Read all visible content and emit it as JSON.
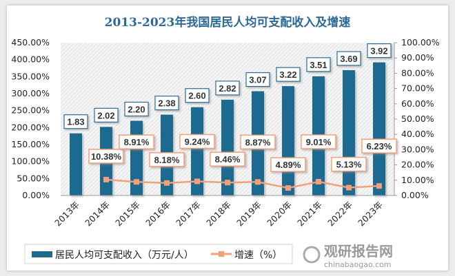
{
  "chart_data": {
    "type": "bar",
    "title": "2013-2023年我国居民人均可支配收入及增速",
    "categories": [
      "2013年",
      "2014年",
      "2015年",
      "2016年",
      "2017年",
      "2018年",
      "2019年",
      "2020年",
      "2021年",
      "2022年",
      "2023年"
    ],
    "series": [
      {
        "name": "居民人均可支配收入（万元/人）",
        "type": "bar",
        "axis": "left",
        "color": "#1f6a8f",
        "values": [
          1.83,
          2.02,
          2.2,
          2.38,
          2.6,
          2.82,
          3.07,
          3.22,
          3.51,
          3.69,
          3.92
        ],
        "labels": [
          "1.83",
          "2.02",
          "2.20",
          "2.38",
          "2.60",
          "2.82",
          "3.07",
          "3.22",
          "3.51",
          "3.69",
          "3.92"
        ]
      },
      {
        "name": "增速（%）",
        "type": "line",
        "axis": "right",
        "color": "#f0a07a",
        "values": [
          null,
          10.38,
          8.91,
          8.18,
          9.24,
          8.46,
          8.87,
          4.89,
          9.01,
          5.13,
          6.23
        ],
        "labels": [
          "",
          "10.38%",
          "8.91%",
          "8.18%",
          "9.24%",
          "8.46%",
          "8.87%",
          "4.89%",
          "9.01%",
          "5.13%",
          "6.23%"
        ]
      }
    ],
    "y_left": {
      "ylim": [
        0,
        450
      ],
      "ticks": [
        "0.00%",
        "50.00%",
        "100.00%",
        "150.00%",
        "200.00%",
        "250.00%",
        "300.00%",
        "350.00%",
        "400.00%",
        "450.00%"
      ]
    },
    "y_right": {
      "ylim": [
        0,
        100
      ],
      "ticks": [
        "0.00%",
        "10.00%",
        "20.00%",
        "30.00%",
        "40.00%",
        "50.00%",
        "60.00%",
        "70.00%",
        "80.00%",
        "90.00%",
        "100.00%"
      ]
    },
    "legend": "bottom",
    "plot_background": "hatched"
  },
  "watermark": {
    "brand": "观研报告网",
    "url": "chinabaogao.com"
  }
}
